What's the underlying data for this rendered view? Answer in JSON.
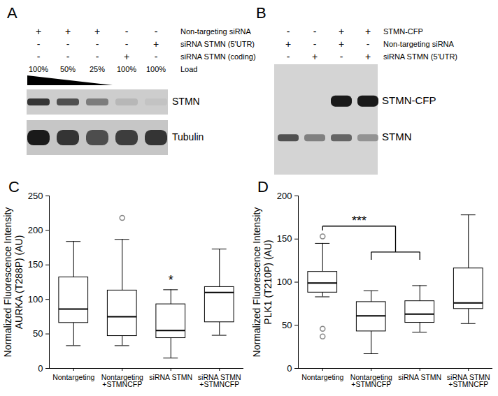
{
  "panels": [
    {
      "panel_label": "A",
      "lanes": 5,
      "conditions": [
        {
          "name": "Non-targeting siRNA",
          "marks": [
            "+",
            "+",
            "+",
            "-",
            "-"
          ]
        },
        {
          "name": "siRNA STMN (5'UTR)",
          "marks": [
            "-",
            "-",
            "-",
            "-",
            "+"
          ]
        },
        {
          "name": "siRNA STMN (coding)",
          "marks": [
            "-",
            "-",
            "-",
            "+",
            "-"
          ]
        },
        {
          "name": "Load",
          "marks": [
            "100%",
            "50%",
            "25%",
            "100%",
            "100%"
          ]
        }
      ],
      "wedge": [
        0,
        2
      ],
      "membranes": [
        [
          {
            "name": "STMN",
            "band_intensity": [
              0.85,
              0.7,
              0.45,
              0.12,
              0.05
            ]
          }
        ],
        [
          {
            "name": "Tubulin",
            "band_intensity": [
              1.0,
              0.85,
              0.7,
              0.8,
              0.85
            ]
          }
        ]
      ]
    },
    {
      "panel_label": "B",
      "lanes": 4,
      "conditions": [
        {
          "name": "STMN-CFP",
          "marks": [
            "-",
            "-",
            "+",
            "+"
          ]
        },
        {
          "name": "Non-targeting siRNA",
          "marks": [
            "+",
            "-",
            "+",
            "-"
          ]
        },
        {
          "name": "siRNA STMN (5'UTR)",
          "marks": [
            "-",
            "+",
            "-",
            "+"
          ]
        }
      ],
      "membranes": [
        [
          {
            "name": "STMN-CFP",
            "band_intensity": [
              0,
              0,
              1.0,
              1.0
            ]
          },
          {
            "name": "STMN",
            "band_intensity": [
              0.7,
              0.45,
              0.6,
              0.35
            ]
          }
        ]
      ]
    }
  ],
  "chart_data": [
    {
      "type": "box",
      "panel_label": "C",
      "ylabel": "Normalized Fluorescence Intensity\nAURKA (T288P) (AU)",
      "categories": [
        "Nontargeting",
        "Nontargeting +STMNCFP",
        "siRNA STMN",
        "siRNA STMN +STMNCFP"
      ],
      "boxes": [
        {
          "min": 33,
          "q1": 66,
          "median": 86,
          "q3": 132,
          "max": 184,
          "outliers": []
        },
        {
          "min": 33,
          "q1": 47,
          "median": 75,
          "q3": 113,
          "max": 187,
          "outliers": [
            218
          ]
        },
        {
          "min": 15,
          "q1": 44,
          "median": 55,
          "q3": 93,
          "max": 114,
          "outliers": []
        },
        {
          "min": 48,
          "q1": 67,
          "median": 110,
          "q3": 118,
          "max": 173,
          "outliers": []
        }
      ],
      "ylim": [
        0,
        250
      ],
      "yticks": [
        0,
        50,
        100,
        150,
        200,
        250
      ],
      "annotations": [
        {
          "text": "*",
          "groups": [
            [
              2
            ]
          ],
          "y": 120
        }
      ]
    },
    {
      "type": "box",
      "panel_label": "D",
      "ylabel": "Normalized Fluorescence Intensity\nPLK1 (T210P) (AU)",
      "categories": [
        "Nontargeting",
        "Nontargeting +STMNCFP",
        "siRNA STMN",
        "siRNA STMN +STMNCFP"
      ],
      "boxes": [
        {
          "min": 83,
          "q1": 88,
          "median": 99,
          "q3": 112,
          "max": 145,
          "outliers": [
            153,
            46,
            37
          ]
        },
        {
          "min": 17,
          "q1": 43,
          "median": 61,
          "q3": 77,
          "max": 90,
          "outliers": []
        },
        {
          "min": 42,
          "q1": 53,
          "median": 63,
          "q3": 78,
          "max": 96,
          "outliers": []
        },
        {
          "min": 52,
          "q1": 69,
          "median": 76,
          "q3": 116,
          "max": 178,
          "outliers": []
        }
      ],
      "ylim": [
        0,
        200
      ],
      "yticks": [
        0,
        50,
        100,
        150,
        200
      ],
      "annotations": [
        {
          "text": "***",
          "groups": [
            [
              0
            ],
            [
              1,
              2
            ]
          ],
          "y": 165,
          "y_join": 135,
          "y_ends": [
            160,
            126
          ]
        }
      ]
    }
  ]
}
